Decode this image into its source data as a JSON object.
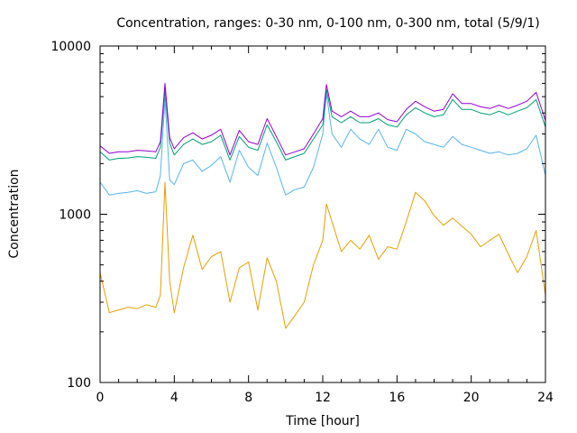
{
  "chart_data": {
    "type": "line",
    "title": "Concentration, ranges: 0-30 nm, 0-100 nm, 0-300 nm, total (5/9/1)",
    "xlabel": "Time [hour]",
    "ylabel": "Concentration",
    "xlim": [
      0,
      24
    ],
    "ylim": [
      100,
      10000
    ],
    "yscale": "log",
    "grid": false,
    "legend": "none",
    "x_ticks": [
      0,
      4,
      8,
      12,
      16,
      20,
      24
    ],
    "x_tick_labels": [
      "0",
      "4",
      "8",
      "12",
      "16",
      "20",
      "24"
    ],
    "y_ticks": [
      100,
      1000,
      10000
    ],
    "y_tick_labels": [
      "100",
      "1000",
      "10000"
    ],
    "x": [
      0,
      0.5,
      1,
      1.5,
      2,
      2.5,
      3,
      3.25,
      3.5,
      3.75,
      4,
      4.5,
      5,
      5.5,
      6,
      6.5,
      7,
      7.5,
      8,
      8.5,
      9,
      9.5,
      10,
      10.5,
      11,
      11.5,
      12,
      12.2,
      12.5,
      13,
      13.5,
      14,
      14.5,
      15,
      15.5,
      16,
      16.5,
      17,
      17.5,
      18,
      18.5,
      19,
      19.5,
      20,
      20.5,
      21,
      21.5,
      22,
      22.5,
      23,
      23.5,
      24
    ],
    "series": [
      {
        "color": "#e69f00",
        "values": [
          450,
          260,
          270,
          280,
          275,
          290,
          280,
          330,
          1550,
          400,
          260,
          480,
          750,
          470,
          560,
          600,
          300,
          480,
          520,
          270,
          550,
          400,
          210,
          250,
          300,
          500,
          700,
          1150,
          900,
          600,
          700,
          620,
          750,
          540,
          640,
          620,
          900,
          1350,
          1200,
          980,
          860,
          950,
          850,
          760,
          640,
          700,
          760,
          580,
          450,
          560,
          800,
          330
        ]
      },
      {
        "color": "#56b4e9",
        "values": [
          1550,
          1300,
          1330,
          1350,
          1380,
          1330,
          1360,
          1700,
          4900,
          1600,
          1500,
          2000,
          2100,
          1800,
          1950,
          2200,
          1550,
          2400,
          1900,
          1700,
          2650,
          1900,
          1300,
          1400,
          1450,
          1900,
          3000,
          5200,
          3000,
          2500,
          3200,
          2800,
          2600,
          3200,
          2500,
          2400,
          3200,
          3000,
          2700,
          2600,
          2500,
          2900,
          2600,
          2500,
          2400,
          2300,
          2350,
          2250,
          2300,
          2450,
          2950,
          1700
        ]
      },
      {
        "color": "#009e73",
        "values": [
          2350,
          2100,
          2150,
          2160,
          2200,
          2180,
          2150,
          2500,
          5500,
          2650,
          2250,
          2600,
          2800,
          2600,
          2700,
          2950,
          2100,
          2900,
          2500,
          2400,
          3400,
          2700,
          2100,
          2200,
          2300,
          2800,
          3400,
          5500,
          3800,
          3500,
          3800,
          3500,
          3500,
          3700,
          3400,
          3300,
          3900,
          4300,
          4000,
          3800,
          3900,
          4800,
          4200,
          4200,
          4000,
          3900,
          4100,
          3900,
          4100,
          4300,
          4800,
          3300
        ]
      },
      {
        "color": "#9400d3",
        "values": [
          2550,
          2300,
          2350,
          2350,
          2400,
          2380,
          2350,
          2700,
          6000,
          2850,
          2450,
          2850,
          3050,
          2800,
          2950,
          3200,
          2250,
          3150,
          2700,
          2600,
          3700,
          2900,
          2250,
          2350,
          2450,
          3000,
          3700,
          5900,
          4100,
          3800,
          4100,
          3800,
          3800,
          4000,
          3650,
          3550,
          4200,
          4700,
          4350,
          4100,
          4200,
          5200,
          4550,
          4550,
          4350,
          4250,
          4450,
          4250,
          4450,
          4700,
          5300,
          3600
        ]
      }
    ]
  }
}
